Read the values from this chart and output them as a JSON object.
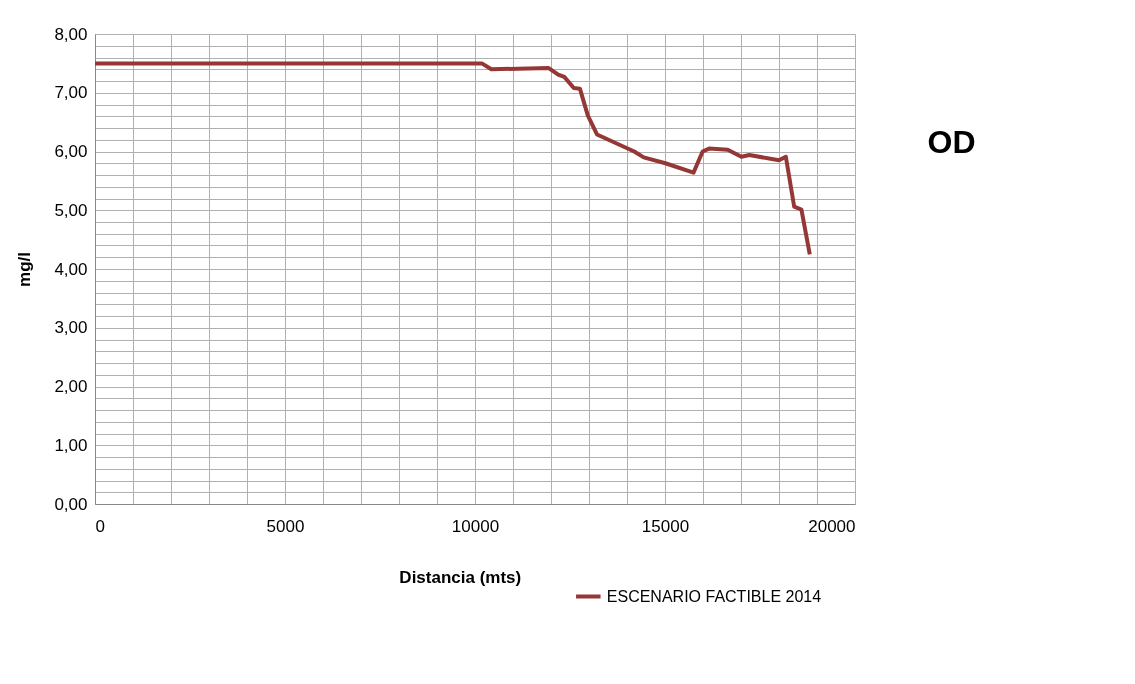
{
  "chart_data": {
    "type": "line",
    "title": "OD",
    "xlabel": "Distancia (mts)",
    "ylabel": "mg/l",
    "xlim": [
      0,
      20000
    ],
    "ylim": [
      0,
      8
    ],
    "xticks": [
      0,
      {
        "value": 1000,
        "label": null
      },
      {
        "value": 2000,
        "label": null
      },
      {
        "value": 3000,
        "label": null
      },
      {
        "value": 4000,
        "label": null
      },
      5000,
      {
        "value": 6000,
        "label": null
      },
      {
        "value": 7000,
        "label": null
      },
      {
        "value": 8000,
        "label": null
      },
      {
        "value": 9000,
        "label": null
      },
      10000,
      {
        "value": 11000,
        "label": null
      },
      {
        "value": 12000,
        "label": null
      },
      {
        "value": 13000,
        "label": null
      },
      {
        "value": 14000,
        "label": null
      },
      15000,
      {
        "value": 16000,
        "label": null
      },
      {
        "value": 17000,
        "label": null
      },
      {
        "value": 18000,
        "label": null
      },
      {
        "value": 19000,
        "label": null
      },
      20000
    ],
    "yticks": [
      {
        "value": 0,
        "label": "0,00"
      },
      {
        "value": 0.2,
        "label": null
      },
      {
        "value": 0.4,
        "label": null
      },
      {
        "value": 0.6,
        "label": null
      },
      {
        "value": 0.8,
        "label": null
      },
      {
        "value": 1,
        "label": "1,00"
      },
      {
        "value": 1.2,
        "label": null
      },
      {
        "value": 1.4,
        "label": null
      },
      {
        "value": 1.6,
        "label": null
      },
      {
        "value": 1.8,
        "label": null
      },
      {
        "value": 2,
        "label": "2,00"
      },
      {
        "value": 2.2,
        "label": null
      },
      {
        "value": 2.4,
        "label": null
      },
      {
        "value": 2.6,
        "label": null
      },
      {
        "value": 2.8,
        "label": null
      },
      {
        "value": 3,
        "label": "3,00"
      },
      {
        "value": 3.2,
        "label": null
      },
      {
        "value": 3.4,
        "label": null
      },
      {
        "value": 3.6,
        "label": null
      },
      {
        "value": 3.8,
        "label": null
      },
      {
        "value": 4,
        "label": "4,00"
      },
      {
        "value": 4.2,
        "label": null
      },
      {
        "value": 4.4,
        "label": null
      },
      {
        "value": 4.6,
        "label": null
      },
      {
        "value": 4.8,
        "label": null
      },
      {
        "value": 5,
        "label": "5,00"
      },
      {
        "value": 5.2,
        "label": null
      },
      {
        "value": 5.4,
        "label": null
      },
      {
        "value": 5.6,
        "label": null
      },
      {
        "value": 5.8,
        "label": null
      },
      {
        "value": 6,
        "label": "6,00"
      },
      {
        "value": 6.2,
        "label": null
      },
      {
        "value": 6.4,
        "label": null
      },
      {
        "value": 6.6,
        "label": null
      },
      {
        "value": 6.8,
        "label": null
      },
      {
        "value": 7,
        "label": "7,00"
      },
      {
        "value": 7.2,
        "label": null
      },
      {
        "value": 7.4,
        "label": null
      },
      {
        "value": 7.6,
        "label": null
      },
      {
        "value": 7.8,
        "label": null
      },
      {
        "value": 8,
        "label": "8,00"
      }
    ],
    "grid": true,
    "legend": "bottom",
    "marker": "none",
    "line_style": "solid",
    "x": [
      0,
      10180,
      10430,
      11940,
      12190,
      12350,
      12600,
      12760,
      12970,
      13210,
      14190,
      14440,
      15010,
      15750,
      15990,
      16160,
      16650,
      17010,
      17220,
      18000,
      18180,
      18400,
      18590,
      18810
    ],
    "series": [
      {
        "name": "ESCENARIO FACTIBLE 2014",
        "color": "#953735",
        "values": [
          7.5,
          7.5,
          7.4,
          7.42,
          7.31,
          7.27,
          7.08,
          7.07,
          6.61,
          6.29,
          6.0,
          5.9,
          5.8,
          5.64,
          6.0,
          6.05,
          6.03,
          5.91,
          5.94,
          5.85,
          5.91,
          5.06,
          5.01,
          4.25
        ]
      }
    ]
  }
}
